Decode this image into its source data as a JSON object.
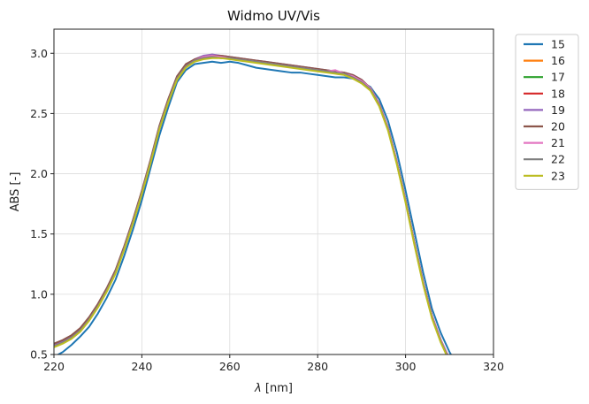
{
  "chart_data": {
    "type": "line",
    "title": "Widmo UV/Vis",
    "xlabel_symbol": "λ",
    "xlabel_unit": " [nm]",
    "ylabel": "ABS [-]",
    "xlim": [
      220,
      320
    ],
    "ylim": [
      0.5,
      3.2
    ],
    "xticks": [
      220,
      240,
      260,
      280,
      300,
      320
    ],
    "yticks": [
      0.5,
      1.0,
      1.5,
      2.0,
      2.5,
      3.0
    ],
    "xtick_labels": [
      "220",
      "240",
      "260",
      "280",
      "300",
      "320"
    ],
    "ytick_labels": [
      "0.5",
      "1.0",
      "1.5",
      "2.0",
      "2.5",
      "3.0"
    ],
    "grid": true,
    "legend_position": "outside-top-right",
    "x": [
      220,
      222,
      224,
      226,
      228,
      230,
      232,
      234,
      236,
      238,
      240,
      242,
      244,
      246,
      248,
      250,
      252,
      254,
      256,
      258,
      260,
      262,
      264,
      266,
      268,
      270,
      272,
      274,
      276,
      278,
      280,
      282,
      284,
      286,
      288,
      290,
      292,
      294,
      296,
      298,
      300,
      302,
      304,
      306,
      308,
      310,
      312
    ],
    "series": [
      {
        "name": "15",
        "color": "#1f77b4",
        "values": [
          0.48,
          0.52,
          0.58,
          0.65,
          0.73,
          0.84,
          0.97,
          1.12,
          1.32,
          1.54,
          1.78,
          2.05,
          2.32,
          2.55,
          2.76,
          2.86,
          2.91,
          2.92,
          2.93,
          2.92,
          2.93,
          2.92,
          2.9,
          2.88,
          2.87,
          2.86,
          2.85,
          2.84,
          2.84,
          2.83,
          2.82,
          2.81,
          2.8,
          2.8,
          2.79,
          2.76,
          2.72,
          2.62,
          2.44,
          2.18,
          1.86,
          1.52,
          1.18,
          0.88,
          0.68,
          0.52,
          0.4
        ]
      },
      {
        "name": "16",
        "color": "#ff7f0e",
        "values": [
          0.57,
          0.6,
          0.64,
          0.7,
          0.79,
          0.9,
          1.03,
          1.18,
          1.38,
          1.6,
          1.84,
          2.1,
          2.38,
          2.6,
          2.79,
          2.89,
          2.94,
          2.96,
          2.97,
          2.97,
          2.96,
          2.95,
          2.94,
          2.93,
          2.92,
          2.91,
          2.9,
          2.89,
          2.88,
          2.87,
          2.86,
          2.85,
          2.84,
          2.83,
          2.81,
          2.77,
          2.71,
          2.58,
          2.38,
          2.1,
          1.78,
          1.43,
          1.1,
          0.82,
          0.62,
          0.46,
          0.36
        ]
      },
      {
        "name": "17",
        "color": "#2ca02c",
        "values": [
          0.57,
          0.6,
          0.64,
          0.7,
          0.79,
          0.9,
          1.03,
          1.18,
          1.38,
          1.6,
          1.84,
          2.1,
          2.38,
          2.6,
          2.79,
          2.89,
          2.94,
          2.96,
          2.97,
          2.96,
          2.96,
          2.95,
          2.94,
          2.93,
          2.92,
          2.91,
          2.9,
          2.89,
          2.88,
          2.87,
          2.86,
          2.85,
          2.84,
          2.83,
          2.81,
          2.77,
          2.71,
          2.58,
          2.38,
          2.1,
          1.78,
          1.43,
          1.1,
          0.82,
          0.62,
          0.46,
          0.36
        ]
      },
      {
        "name": "18",
        "color": "#d62728",
        "values": [
          0.57,
          0.6,
          0.64,
          0.7,
          0.79,
          0.9,
          1.03,
          1.18,
          1.38,
          1.6,
          1.84,
          2.1,
          2.38,
          2.6,
          2.79,
          2.89,
          2.94,
          2.96,
          2.97,
          2.97,
          2.96,
          2.95,
          2.94,
          2.93,
          2.92,
          2.91,
          2.9,
          2.89,
          2.88,
          2.87,
          2.86,
          2.85,
          2.84,
          2.83,
          2.81,
          2.77,
          2.71,
          2.58,
          2.38,
          2.1,
          1.78,
          1.43,
          1.1,
          0.82,
          0.62,
          0.46,
          0.36
        ]
      },
      {
        "name": "19",
        "color": "#9467bd",
        "values": [
          0.58,
          0.61,
          0.65,
          0.71,
          0.8,
          0.91,
          1.04,
          1.19,
          1.39,
          1.61,
          1.85,
          2.11,
          2.39,
          2.61,
          2.8,
          2.9,
          2.95,
          2.98,
          2.99,
          2.98,
          2.97,
          2.96,
          2.95,
          2.94,
          2.93,
          2.92,
          2.91,
          2.9,
          2.89,
          2.88,
          2.87,
          2.86,
          2.85,
          2.84,
          2.82,
          2.78,
          2.71,
          2.58,
          2.38,
          2.1,
          1.78,
          1.43,
          1.1,
          0.82,
          0.62,
          0.46,
          0.36
        ]
      },
      {
        "name": "20",
        "color": "#8c564b",
        "values": [
          0.59,
          0.62,
          0.66,
          0.72,
          0.81,
          0.92,
          1.05,
          1.2,
          1.4,
          1.62,
          1.86,
          2.12,
          2.4,
          2.62,
          2.81,
          2.91,
          2.95,
          2.97,
          2.98,
          2.98,
          2.97,
          2.96,
          2.95,
          2.94,
          2.93,
          2.92,
          2.91,
          2.9,
          2.89,
          2.88,
          2.87,
          2.86,
          2.85,
          2.84,
          2.82,
          2.78,
          2.71,
          2.58,
          2.38,
          2.1,
          1.78,
          1.43,
          1.1,
          0.82,
          0.62,
          0.46,
          0.36
        ]
      },
      {
        "name": "21",
        "color": "#e377c2",
        "values": [
          0.57,
          0.6,
          0.64,
          0.7,
          0.79,
          0.9,
          1.03,
          1.18,
          1.38,
          1.6,
          1.84,
          2.1,
          2.38,
          2.6,
          2.79,
          2.89,
          2.94,
          2.97,
          2.98,
          2.97,
          2.96,
          2.95,
          2.94,
          2.93,
          2.92,
          2.91,
          2.9,
          2.89,
          2.88,
          2.87,
          2.86,
          2.85,
          2.86,
          2.83,
          2.81,
          2.77,
          2.71,
          2.58,
          2.38,
          2.1,
          1.78,
          1.43,
          1.1,
          0.82,
          0.62,
          0.46,
          0.36
        ]
      },
      {
        "name": "22",
        "color": "#7f7f7f",
        "values": [
          0.57,
          0.6,
          0.64,
          0.7,
          0.79,
          0.9,
          1.03,
          1.18,
          1.38,
          1.6,
          1.84,
          2.1,
          2.38,
          2.6,
          2.79,
          2.89,
          2.94,
          2.96,
          2.97,
          2.96,
          2.96,
          2.95,
          2.94,
          2.93,
          2.92,
          2.91,
          2.9,
          2.89,
          2.88,
          2.87,
          2.86,
          2.85,
          2.84,
          2.83,
          2.8,
          2.76,
          2.7,
          2.57,
          2.37,
          2.09,
          1.77,
          1.42,
          1.09,
          0.81,
          0.61,
          0.45,
          0.35
        ]
      },
      {
        "name": "23",
        "color": "#bcbd22",
        "values": [
          0.56,
          0.59,
          0.63,
          0.69,
          0.78,
          0.89,
          1.02,
          1.17,
          1.37,
          1.59,
          1.83,
          2.09,
          2.37,
          2.59,
          2.78,
          2.88,
          2.93,
          2.95,
          2.96,
          2.96,
          2.95,
          2.94,
          2.93,
          2.92,
          2.91,
          2.9,
          2.89,
          2.88,
          2.87,
          2.86,
          2.85,
          2.84,
          2.83,
          2.82,
          2.79,
          2.75,
          2.69,
          2.56,
          2.36,
          2.08,
          1.76,
          1.41,
          1.08,
          0.8,
          0.6,
          0.44,
          0.34
        ]
      }
    ]
  }
}
